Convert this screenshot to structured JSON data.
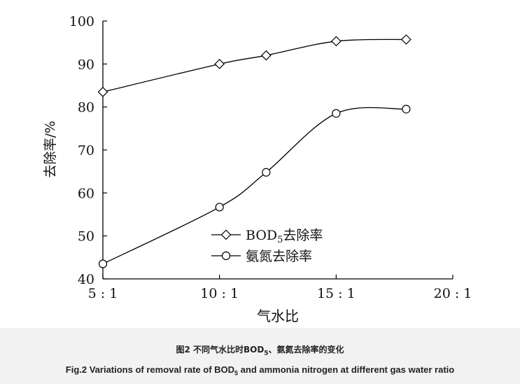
{
  "chart_data": {
    "type": "line",
    "xlabel": "气水比",
    "ylabel": "去除率/%",
    "x_ticks": [
      "5 : 1",
      "10 : 1",
      "15 : 1",
      "20 : 1"
    ],
    "x_tick_values": [
      5,
      10,
      15,
      20
    ],
    "xlim": [
      5,
      20
    ],
    "ylim": [
      40,
      100
    ],
    "y_ticks": [
      40,
      50,
      60,
      70,
      80,
      90,
      100
    ],
    "legend_position": "bottom-center",
    "grid": false,
    "series": [
      {
        "name": "BOD5去除率",
        "legend_main": "BOD",
        "legend_sub": "5",
        "legend_tail": "去除率",
        "marker": "diamond",
        "x": [
          5,
          10,
          12,
          15,
          18
        ],
        "y": [
          83.5,
          90,
          92,
          95.3,
          95.7
        ]
      },
      {
        "name": "氨氮去除率",
        "marker": "circle",
        "x": [
          5,
          10,
          12,
          15,
          18
        ],
        "y": [
          43.5,
          56.7,
          64.8,
          78.5,
          79.5
        ]
      }
    ]
  },
  "caption": {
    "zh_pre": "图2   不同气水比时BOD",
    "zh_sub": "5",
    "zh_post": "、氨氮去除率的变化",
    "en_pre": "Fig.2   Variations of removal rate of BOD",
    "en_sub": "5",
    "en_post": " and ammonia nitrogen at different gas water ratio"
  }
}
